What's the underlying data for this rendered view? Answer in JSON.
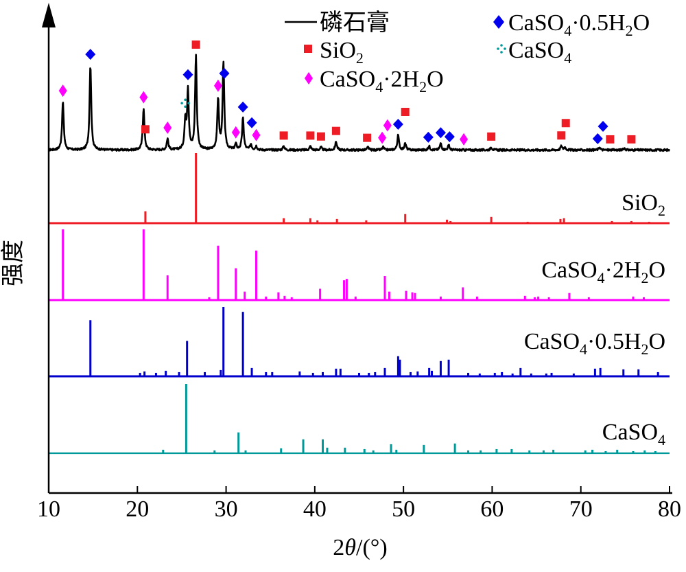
{
  "chart_data": {
    "type": "line",
    "title": "",
    "xlabel": "2θ/(°)",
    "ylabel": "强度",
    "xlim": [
      10,
      80
    ],
    "x_ticks": [
      "10",
      "20",
      "30",
      "40",
      "50",
      "60",
      "70",
      "80"
    ],
    "y_ticks_shown": false,
    "grid": false,
    "legend_placement": "top",
    "legend": [
      {
        "label": "磷石膏",
        "symbol": "line",
        "color": "#000000"
      },
      {
        "label": "SiO2",
        "symbol": "square",
        "color": "#ee1c24"
      },
      {
        "label": "CaSO4·2H2O",
        "symbol": "diamond",
        "color": "#ff00ff"
      },
      {
        "label": "CaSO4·0.5H2O",
        "symbol": "diamond",
        "color": "#0000ee"
      },
      {
        "label": "CaSO4",
        "symbol": "cross-dots",
        "color": "#009999"
      }
    ],
    "series": [
      {
        "name": "磷石膏",
        "color": "#000000",
        "type": "measured",
        "peaks": [
          [
            11.6,
            0.52
          ],
          [
            14.7,
            0.91
          ],
          [
            20.7,
            0.45
          ],
          [
            23.4,
            0.12
          ],
          [
            25.4,
            0.3
          ],
          [
            25.7,
            0.64
          ],
          [
            26.6,
            1.0
          ],
          [
            29.1,
            0.54
          ],
          [
            29.7,
            0.93
          ],
          [
            31.1,
            0.06
          ],
          [
            31.9,
            0.34
          ],
          [
            32.8,
            0.06
          ],
          [
            33.4,
            0.04
          ],
          [
            36.5,
            0.04
          ],
          [
            39.5,
            0.04
          ],
          [
            40.7,
            0.03
          ],
          [
            42.4,
            0.09
          ],
          [
            46.0,
            0.03
          ],
          [
            47.7,
            0.03
          ],
          [
            49.4,
            0.16
          ],
          [
            50.2,
            0.07
          ],
          [
            52.9,
            0.04
          ],
          [
            54.2,
            0.07
          ],
          [
            55.1,
            0.05
          ],
          [
            59.9,
            0.03
          ],
          [
            67.8,
            0.04
          ],
          [
            68.2,
            0.03
          ],
          [
            72.1,
            0.03
          ],
          [
            74.9,
            0.02
          ]
        ]
      },
      {
        "name": "SiO2",
        "color": "#ee1c24",
        "type": "reference",
        "peaks": [
          [
            20.9,
            0.17
          ],
          [
            26.6,
            1.0
          ],
          [
            36.5,
            0.07
          ],
          [
            39.5,
            0.07
          ],
          [
            40.3,
            0.04
          ],
          [
            42.5,
            0.06
          ],
          [
            45.8,
            0.04
          ],
          [
            50.2,
            0.13
          ],
          [
            54.9,
            0.05
          ],
          [
            55.3,
            0.03
          ],
          [
            59.9,
            0.09
          ],
          [
            64.0,
            0.02
          ],
          [
            67.7,
            0.06
          ],
          [
            68.1,
            0.07
          ],
          [
            73.5,
            0.03
          ],
          [
            75.7,
            0.03
          ],
          [
            77.7,
            0.02
          ]
        ]
      },
      {
        "name": "CaSO4·2H2O",
        "color": "#ff00ff",
        "type": "reference",
        "peaks": [
          [
            11.6,
            1.0
          ],
          [
            20.7,
            1.0
          ],
          [
            23.4,
            0.35
          ],
          [
            28.1,
            0.04
          ],
          [
            29.1,
            0.77
          ],
          [
            31.1,
            0.45
          ],
          [
            32.1,
            0.12
          ],
          [
            33.4,
            0.7
          ],
          [
            34.5,
            0.05
          ],
          [
            35.9,
            0.11
          ],
          [
            36.6,
            0.06
          ],
          [
            37.4,
            0.04
          ],
          [
            40.6,
            0.16
          ],
          [
            43.3,
            0.28
          ],
          [
            43.6,
            0.3
          ],
          [
            44.6,
            0.05
          ],
          [
            47.9,
            0.34
          ],
          [
            48.4,
            0.12
          ],
          [
            50.3,
            0.13
          ],
          [
            51.0,
            0.11
          ],
          [
            51.3,
            0.1
          ],
          [
            54.2,
            0.05
          ],
          [
            56.7,
            0.18
          ],
          [
            58.3,
            0.05
          ],
          [
            63.7,
            0.06
          ],
          [
            64.8,
            0.04
          ],
          [
            65.2,
            0.05
          ],
          [
            66.4,
            0.04
          ],
          [
            68.7,
            0.1
          ],
          [
            70.9,
            0.04
          ],
          [
            75.9,
            0.05
          ],
          [
            77.1,
            0.04
          ]
        ]
      },
      {
        "name": "CaSO4·0.5H2O",
        "color": "#0000cc",
        "type": "reference",
        "peaks": [
          [
            14.7,
            0.81
          ],
          [
            20.3,
            0.05
          ],
          [
            20.8,
            0.07
          ],
          [
            22.1,
            0.05
          ],
          [
            23.2,
            0.08
          ],
          [
            24.7,
            0.06
          ],
          [
            25.6,
            0.51
          ],
          [
            27.6,
            0.06
          ],
          [
            29.4,
            0.09
          ],
          [
            29.7,
            1.0
          ],
          [
            31.9,
            0.93
          ],
          [
            32.9,
            0.12
          ],
          [
            34.5,
            0.06
          ],
          [
            35.2,
            0.06
          ],
          [
            38.3,
            0.07
          ],
          [
            39.8,
            0.05
          ],
          [
            40.9,
            0.06
          ],
          [
            42.4,
            0.11
          ],
          [
            42.9,
            0.11
          ],
          [
            45.0,
            0.05
          ],
          [
            46.1,
            0.05
          ],
          [
            46.8,
            0.06
          ],
          [
            47.9,
            0.12
          ],
          [
            49.4,
            0.29
          ],
          [
            49.6,
            0.24
          ],
          [
            50.8,
            0.06
          ],
          [
            51.6,
            0.07
          ],
          [
            52.9,
            0.12
          ],
          [
            53.2,
            0.08
          ],
          [
            54.2,
            0.22
          ],
          [
            55.1,
            0.24
          ],
          [
            57.3,
            0.05
          ],
          [
            58.6,
            0.04
          ],
          [
            60.3,
            0.05
          ],
          [
            61.1,
            0.06
          ],
          [
            62.3,
            0.04
          ],
          [
            63.2,
            0.12
          ],
          [
            64.4,
            0.04
          ],
          [
            66.1,
            0.04
          ],
          [
            66.7,
            0.05
          ],
          [
            69.2,
            0.04
          ],
          [
            71.6,
            0.11
          ],
          [
            72.2,
            0.12
          ],
          [
            74.8,
            0.1
          ],
          [
            76.5,
            0.1
          ],
          [
            78.7,
            0.06
          ]
        ]
      },
      {
        "name": "CaSO4",
        "color": "#009999",
        "type": "reference",
        "peaks": [
          [
            22.9,
            0.05
          ],
          [
            25.5,
            1.0
          ],
          [
            28.7,
            0.04
          ],
          [
            31.4,
            0.3
          ],
          [
            32.2,
            0.04
          ],
          [
            36.2,
            0.07
          ],
          [
            38.7,
            0.2
          ],
          [
            40.9,
            0.2
          ],
          [
            41.4,
            0.08
          ],
          [
            43.4,
            0.08
          ],
          [
            45.6,
            0.06
          ],
          [
            46.6,
            0.04
          ],
          [
            48.6,
            0.13
          ],
          [
            49.2,
            0.05
          ],
          [
            52.3,
            0.12
          ],
          [
            55.8,
            0.14
          ],
          [
            57.3,
            0.04
          ],
          [
            58.7,
            0.04
          ],
          [
            60.5,
            0.06
          ],
          [
            62.2,
            0.06
          ],
          [
            64.2,
            0.04
          ],
          [
            65.8,
            0.04
          ],
          [
            66.9,
            0.05
          ],
          [
            70.5,
            0.04
          ],
          [
            71.3,
            0.05
          ],
          [
            72.8,
            0.03
          ],
          [
            74.1,
            0.05
          ],
          [
            75.9,
            0.03
          ],
          [
            77.2,
            0.04
          ],
          [
            78.4,
            0.03
          ]
        ]
      }
    ],
    "phase_markers": [
      {
        "phase": "CaSO4·2H2O",
        "symbol": "diamond",
        "color": "#ff00ff",
        "x": [
          11.6,
          20.7,
          23.4,
          29.1,
          31.1,
          33.4,
          47.6,
          48.2,
          56.8
        ]
      },
      {
        "phase": "CaSO4·0.5H2O",
        "symbol": "diamond",
        "color": "#0000ee",
        "x": [
          14.7,
          25.7,
          29.8,
          31.9,
          32.9,
          49.4,
          52.8,
          54.2,
          55.2,
          71.9,
          72.5
        ]
      },
      {
        "phase": "SiO2",
        "symbol": "square",
        "color": "#ee1c24",
        "x": [
          20.9,
          26.6,
          36.5,
          39.5,
          40.7,
          42.4,
          45.9,
          50.2,
          59.9,
          67.8,
          68.3,
          73.3,
          75.7
        ]
      },
      {
        "phase": "CaSO4",
        "symbol": "cross-dots",
        "color": "#009999",
        "x": [
          25.4
        ]
      }
    ]
  },
  "labels": {
    "ylabel": "强度",
    "xlabel_prefix": "2",
    "xlabel_theta": "θ",
    "xlabel_suffix": "/(°)",
    "legend_phosphogypsum": "磷石膏",
    "legend_sio2_base": "SiO",
    "legend_sio2_sub": "2",
    "legend_dihydrate_a": "CaSO",
    "legend_dihydrate_sub1": "4",
    "legend_dihydrate_b": "·2H",
    "legend_dihydrate_sub2": "2",
    "legend_dihydrate_c": "O",
    "legend_hemi_a": "CaSO",
    "legend_hemi_sub1": "4",
    "legend_hemi_b": "·0.5H",
    "legend_hemi_sub2": "2",
    "legend_hemi_c": "O",
    "legend_anhydrite_a": "CaSO",
    "legend_anhydrite_sub": "4",
    "ref_sio2_base": "SiO",
    "ref_sio2_sub": "2",
    "ref_dihydrate_a": "CaSO",
    "ref_dihydrate_sub1": "4",
    "ref_dihydrate_b": "·2H",
    "ref_dihydrate_sub2": "2",
    "ref_dihydrate_c": "O",
    "ref_hemi_a": "CaSO",
    "ref_hemi_sub1": "4",
    "ref_hemi_b": "·0.5H",
    "ref_hemi_sub2": "2",
    "ref_hemi_c": "O",
    "ref_anhydrite_a": "CaSO",
    "ref_anhydrite_sub": "4"
  }
}
